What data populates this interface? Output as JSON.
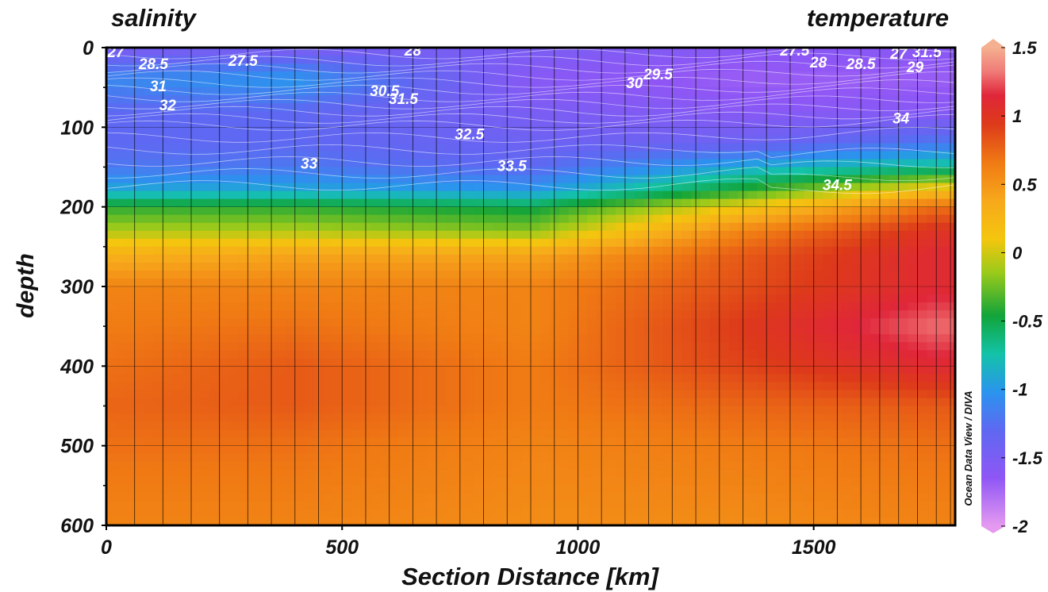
{
  "chart_data": {
    "type": "heatmap",
    "left_title": "salinity",
    "right_title": "temperature",
    "xlabel": "Section Distance [km]",
    "ylabel": "depth",
    "xlim": [
      0,
      1800
    ],
    "ylim": [
      600,
      0
    ],
    "x_ticks": [
      "0",
      "500",
      "1000",
      "1500"
    ],
    "y_ticks": [
      "0",
      "100",
      "200",
      "300",
      "400",
      "500",
      "600"
    ],
    "colorbar": {
      "range": [
        -2,
        1.5
      ],
      "ticks": [
        "1.5",
        "1",
        "0.5",
        "0",
        "-0.5",
        "-1",
        "-1.5",
        "-2"
      ],
      "label": "Ocean Data View / DIVA",
      "colors": [
        "#e59af0",
        "#8f56f5",
        "#5f68f2",
        "#2a94ee",
        "#13c3a8",
        "#12a43a",
        "#9bca1a",
        "#f4c60e",
        "#f7a81b",
        "#f07a14",
        "#dd3a1a",
        "#e0263a",
        "#f07a78",
        "#f4b090"
      ]
    },
    "temperature_profile": {
      "depths": [
        0,
        40,
        80,
        120,
        150,
        180,
        200,
        230,
        260,
        300,
        350,
        400,
        450,
        500,
        600
      ],
      "at_0km": [
        -1.5,
        -1.1,
        -1.3,
        -1.3,
        -1.2,
        -0.9,
        -0.4,
        -0.1,
        0.3,
        0.6,
        0.65,
        0.7,
        0.75,
        0.7,
        0.6
      ],
      "at_400km": [
        -1.5,
        -1.0,
        -1.3,
        -1.3,
        -1.2,
        -0.9,
        -0.4,
        -0.1,
        0.4,
        0.6,
        0.7,
        0.8,
        0.8,
        0.7,
        0.6
      ],
      "at_900km": [
        -1.5,
        -1.6,
        -1.5,
        -1.4,
        -1.3,
        -1.0,
        -0.5,
        -0.2,
        0.4,
        0.6,
        0.6,
        0.65,
        0.65,
        0.6,
        0.55
      ],
      "at_1350km": [
        -1.6,
        -1.7,
        -1.6,
        -1.4,
        -0.9,
        -0.4,
        0.1,
        0.6,
        0.8,
        0.85,
        0.95,
        0.9,
        0.75,
        0.65,
        0.55
      ],
      "at_1750km": [
        -1.6,
        -1.7,
        -1.6,
        -1.2,
        -0.7,
        0.2,
        0.7,
        1.0,
        1.1,
        1.1,
        1.3,
        1.1,
        0.8,
        0.7,
        0.6
      ]
    },
    "station_distances_km": [
      60,
      120,
      180,
      240,
      300,
      350,
      400,
      450,
      500,
      550,
      600,
      650,
      700,
      750,
      800,
      850,
      900,
      950,
      1000,
      1050,
      1100,
      1150,
      1200,
      1250,
      1300,
      1350,
      1400,
      1450,
      1500,
      1550,
      1600,
      1640,
      1680,
      1720,
      1760,
      1790
    ],
    "salinity_contour_labels": [
      {
        "text": "27",
        "x": 20,
        "y": 5
      },
      {
        "text": "28.5",
        "x": 100,
        "y": 20
      },
      {
        "text": "27.5",
        "x": 290,
        "y": 16
      },
      {
        "text": "28",
        "x": 650,
        "y": 3
      },
      {
        "text": "31",
        "x": 110,
        "y": 48
      },
      {
        "text": "32",
        "x": 130,
        "y": 72
      },
      {
        "text": "30.5",
        "x": 590,
        "y": 54
      },
      {
        "text": "31.5",
        "x": 630,
        "y": 64
      },
      {
        "text": "30",
        "x": 1120,
        "y": 44
      },
      {
        "text": "29.5",
        "x": 1170,
        "y": 33
      },
      {
        "text": "27.5",
        "x": 1460,
        "y": 3
      },
      {
        "text": "28",
        "x": 1510,
        "y": 18
      },
      {
        "text": "28.5",
        "x": 1600,
        "y": 20
      },
      {
        "text": "27",
        "x": 1680,
        "y": 7
      },
      {
        "text": "31.5",
        "x": 1740,
        "y": 5
      },
      {
        "text": "29",
        "x": 1715,
        "y": 24
      },
      {
        "text": "34",
        "x": 1685,
        "y": 88
      },
      {
        "text": "32.5",
        "x": 770,
        "y": 108
      },
      {
        "text": "33",
        "x": 430,
        "y": 145
      },
      {
        "text": "33.5",
        "x": 860,
        "y": 148
      },
      {
        "text": "34.5",
        "x": 1550,
        "y": 172
      }
    ]
  }
}
